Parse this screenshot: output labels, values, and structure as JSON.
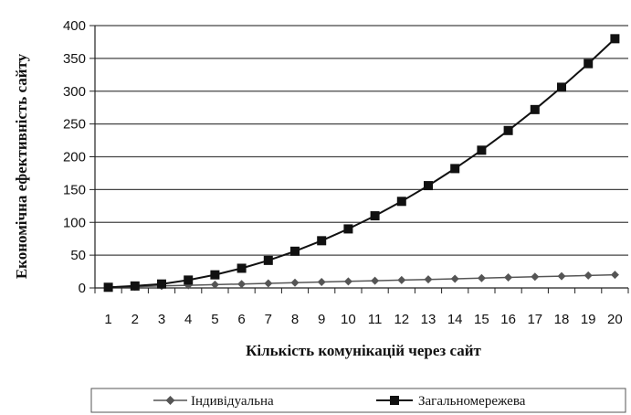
{
  "chart_data": {
    "type": "line",
    "title": "",
    "xlabel": "Кількість комунікацій через сайт",
    "ylabel": "Економічна ефективність сайту",
    "categories": [
      "1",
      "2",
      "3",
      "4",
      "5",
      "6",
      "7",
      "8",
      "9",
      "10",
      "11",
      "12",
      "13",
      "14",
      "15",
      "16",
      "17",
      "18",
      "19",
      "20"
    ],
    "yticks": [
      "0",
      "50",
      "100",
      "150",
      "200",
      "250",
      "300",
      "350",
      "400"
    ],
    "ylim": [
      0,
      400
    ],
    "grid": "horizontal",
    "legend_position": "bottom",
    "series": [
      {
        "name": "Індивідуальна",
        "marker": "diamond",
        "color": "#555555",
        "values": [
          1,
          2,
          3,
          4,
          5,
          6,
          7,
          8,
          9,
          10,
          11,
          12,
          13,
          14,
          15,
          16,
          17,
          18,
          19,
          20
        ]
      },
      {
        "name": "Загальномережева",
        "marker": "square",
        "color": "#111111",
        "values": [
          1,
          3,
          6,
          12,
          20,
          30,
          42,
          56,
          72,
          90,
          110,
          132,
          156,
          182,
          210,
          240,
          272,
          306,
          342,
          380
        ]
      }
    ]
  }
}
